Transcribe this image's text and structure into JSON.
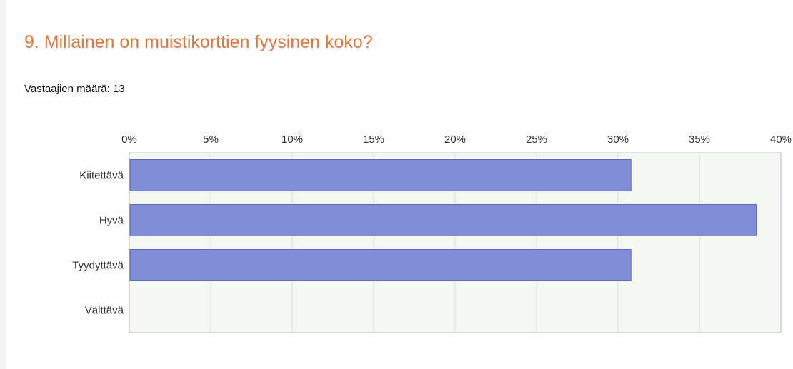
{
  "header": {
    "title": "9. Millainen on muistikorttien fyysinen koko?",
    "respondents": "Vastaajien määrä: 13"
  },
  "colors": {
    "title": "#e2773d",
    "bar_fill": "#7f8ed6",
    "bar_stroke": "#5d6cb5",
    "plot_bg": "#f5f7f2",
    "grid": "#dcdcdc"
  },
  "chart_data": {
    "type": "bar",
    "orientation": "horizontal",
    "categories": [
      "Kiitettävä",
      "Hyvä",
      "Tyydyttävä",
      "Välttävä"
    ],
    "values": [
      30.8,
      38.5,
      30.8,
      0
    ],
    "xlim": [
      0,
      40
    ],
    "xticks": [
      "0%",
      "5%",
      "10%",
      "15%",
      "20%",
      "25%",
      "30%",
      "35%",
      "40%"
    ],
    "grid": true,
    "title": "",
    "xlabel": "",
    "ylabel": ""
  }
}
